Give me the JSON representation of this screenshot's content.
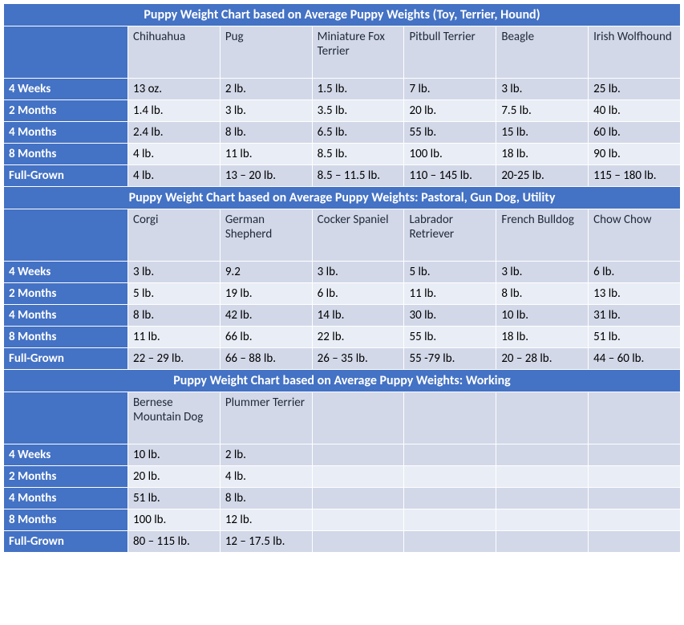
{
  "sections": [
    {
      "title": "Puppy Weight Chart based on Average Puppy Weights (Toy, Terrier, Hound)",
      "breeds": [
        "Chihuahua",
        "Pug",
        "Miniature Fox Terrier",
        "Pitbull Terrier",
        "Beagle",
        "Irish Wolfhound"
      ],
      "rows": [
        {
          "label": "4 Weeks",
          "alt": "a",
          "values": [
            "13 oz.",
            "2 lb.",
            "1.5 lb.",
            "7 lb.",
            "3 lb.",
            "25 lb."
          ]
        },
        {
          "label": "2 Months",
          "alt": "b",
          "values": [
            "1.4 lb.",
            "3 lb.",
            "3.5 lb.",
            "20 lb.",
            "7.5 lb.",
            "40 lb."
          ]
        },
        {
          "label": "4 Months",
          "alt": "a",
          "values": [
            "2.4 lb.",
            "8 lb.",
            "6.5 lb.",
            "55 lb.",
            "15 lb.",
            "60 lb."
          ]
        },
        {
          "label": "8 Months",
          "alt": "b",
          "values": [
            "4 lb.",
            "11 lb.",
            "8.5 lb.",
            "100 lb.",
            "18 lb.",
            "90 lb."
          ]
        },
        {
          "label": "Full-Grown",
          "alt": "a",
          "values": [
            "4 lb.",
            "13 – 20 lb.",
            "8.5 – 11.5 lb.",
            "110 – 145 lb.",
            "20-25 lb.",
            "115 – 180 lb."
          ]
        }
      ]
    },
    {
      "title": "Puppy Weight Chart based on Average Puppy Weights: Pastoral, Gun Dog, Utility",
      "breeds": [
        "Corgi",
        "German Shepherd",
        "Cocker Spaniel",
        "Labrador Retriever",
        "French Bulldog",
        "Chow Chow"
      ],
      "rows": [
        {
          "label": "4 Weeks",
          "alt": "a",
          "values": [
            "3 lb.",
            "9.2",
            "3 lb.",
            "5 lb.",
            "3 lb.",
            "6 lb."
          ]
        },
        {
          "label": "2 Months",
          "alt": "b",
          "values": [
            "5 lb.",
            "19 lb.",
            "6 lb.",
            "11 lb.",
            "8 lb.",
            "13 lb."
          ]
        },
        {
          "label": "4 Months",
          "alt": "a",
          "values": [
            "8 lb.",
            "42 lb.",
            "14 lb.",
            "30 lb.",
            "10 lb.",
            "31 lb."
          ]
        },
        {
          "label": "8 Months",
          "alt": "b",
          "values": [
            "11 lb.",
            "66 lb.",
            "22 lb.",
            "55 lb.",
            "18 lb.",
            "51 lb."
          ]
        },
        {
          "label": "Full-Grown",
          "alt": "a",
          "values": [
            "22 – 29 lb.",
            "66 – 88 lb.",
            "26 – 35 lb.",
            "55 -79 lb.",
            "20 – 28 lb.",
            "44 – 60 lb."
          ]
        }
      ]
    },
    {
      "title": "Puppy Weight Chart based on Average Puppy Weights: Working",
      "breeds": [
        "Bernese Mountain Dog",
        "Plummer Terrier",
        "",
        "",
        "",
        ""
      ],
      "rows": [
        {
          "label": "4 Weeks",
          "alt": "a",
          "values": [
            "10 lb.",
            "2 lb.",
            "",
            "",
            "",
            ""
          ]
        },
        {
          "label": "2 Months",
          "alt": "b",
          "values": [
            "20 lb.",
            "4 lb.",
            "",
            "",
            "",
            ""
          ]
        },
        {
          "label": "4 Months",
          "alt": "a",
          "values": [
            "51 lb.",
            "8 lb.",
            "",
            "",
            "",
            ""
          ]
        },
        {
          "label": "8 Months",
          "alt": "b",
          "values": [
            "100 lb.",
            "12 lb.",
            "",
            "",
            "",
            ""
          ]
        },
        {
          "label": "Full-Grown",
          "alt": "a",
          "values": [
            "80 – 115 lb.",
            "12 – 17.5 lb.",
            "",
            "",
            "",
            ""
          ]
        }
      ]
    }
  ],
  "colors": {
    "primary": "#4472c4",
    "band_a": "#d2d8e8",
    "band_b": "#e9edf5",
    "text_on_primary": "#ffffff"
  }
}
